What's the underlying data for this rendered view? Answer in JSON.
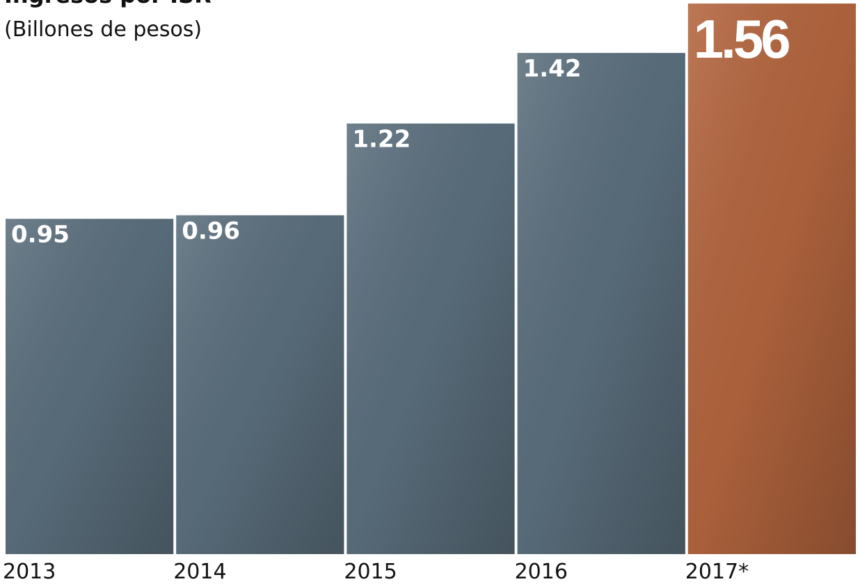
{
  "chart_data": {
    "type": "bar",
    "title": "Ingresos por ISR",
    "subtitle": "(Billones de pesos)",
    "categories": [
      "2013",
      "2014",
      "2015",
      "2016",
      "2017*"
    ],
    "values": [
      0.95,
      0.96,
      1.22,
      1.42,
      1.56
    ],
    "colors": [
      "#5b6f7d",
      "#5b6f7d",
      "#5b6f7d",
      "#5b6f7d",
      "#b3653e"
    ],
    "ylim": [
      0,
      1.57
    ]
  }
}
